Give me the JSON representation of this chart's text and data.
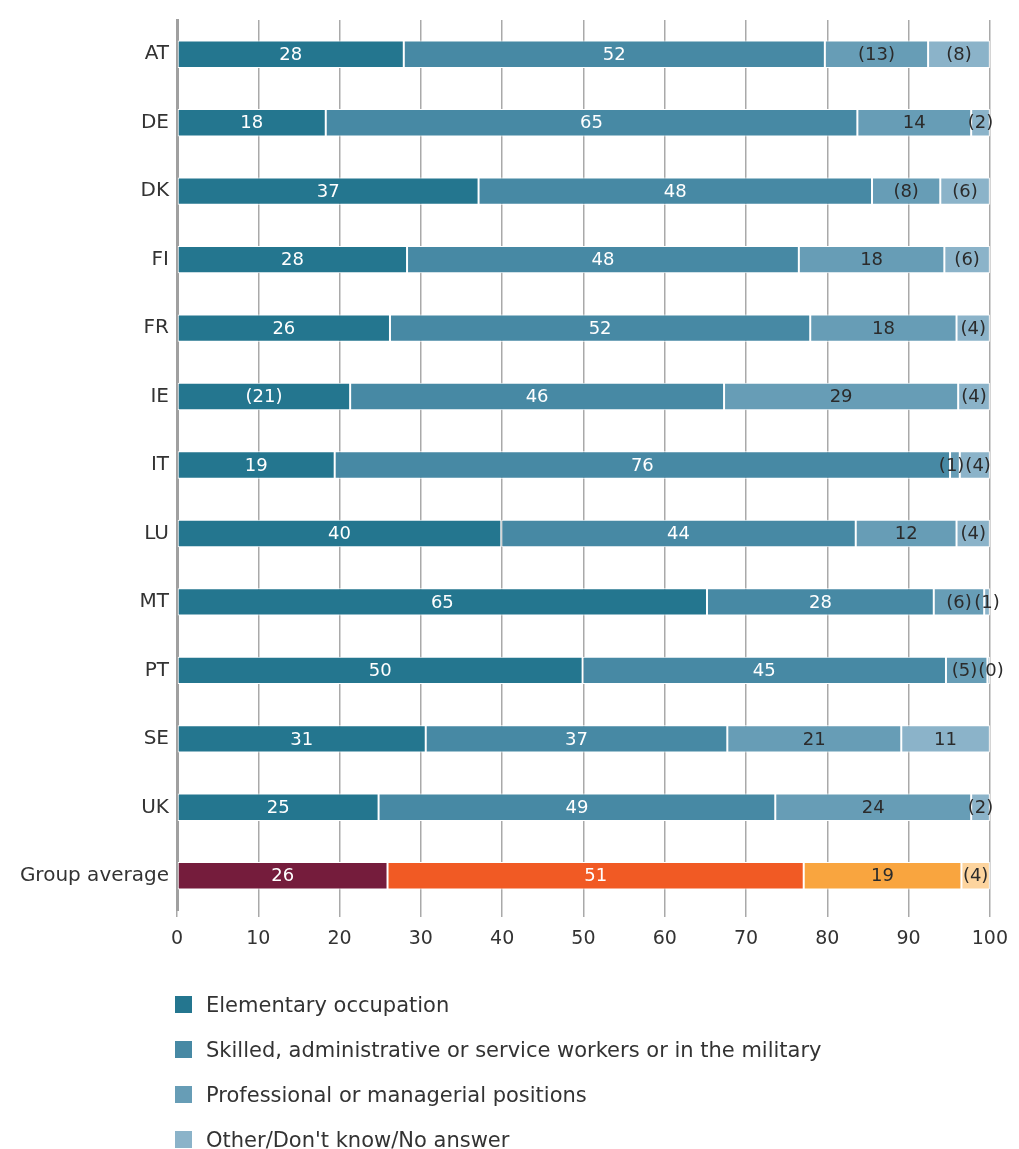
{
  "chart_data": {
    "type": "bar",
    "orientation": "horizontal",
    "stacked": true,
    "categories": [
      "AT",
      "DE",
      "DK",
      "FI",
      "FR",
      "IE",
      "IT",
      "LU",
      "MT",
      "PT",
      "SE",
      "UK",
      "Group average"
    ],
    "series": [
      {
        "name": "Elementary occupation",
        "color": "#24768f",
        "colors": [
          "#24768f",
          "#24768f",
          "#24768f",
          "#24768f",
          "#24768f",
          "#24768f",
          "#24768f",
          "#24768f",
          "#24768f",
          "#24768f",
          "#24768f",
          "#24768f",
          "#751c3c"
        ],
        "values": [
          27.9,
          18.3,
          37.1,
          28.3,
          26.2,
          21.3,
          19.4,
          39.9,
          65.2,
          49.9,
          30.6,
          24.8,
          25.9
        ],
        "value_labels": [
          "28",
          "18",
          "37",
          "28",
          "26",
          "(21)",
          "19",
          "40",
          "65",
          "50",
          "31",
          "25",
          "26"
        ]
      },
      {
        "name": "Skilled, administrative or service workers or in the military",
        "color": "#4789a4",
        "colors": [
          "#4789a4",
          "#4789a4",
          "#4789a4",
          "#4789a4",
          "#4789a4",
          "#4789a4",
          "#4789a4",
          "#4789a4",
          "#4789a4",
          "#4789a4",
          "#4789a4",
          "#4789a4",
          "#f15a24"
        ],
        "values": [
          51.8,
          65.4,
          48.4,
          48.2,
          51.7,
          46.0,
          75.7,
          43.6,
          27.9,
          44.7,
          37.1,
          48.8,
          51.2
        ],
        "value_labels": [
          "52",
          "65",
          "48",
          "48",
          "52",
          "46",
          "76",
          "44",
          "28",
          "45",
          "37",
          "49",
          "51"
        ]
      },
      {
        "name": "Professional or managerial positions",
        "color": "#679db6",
        "colors": [
          "#679db6",
          "#679db6",
          "#679db6",
          "#679db6",
          "#679db6",
          "#679db6",
          "#679db6",
          "#679db6",
          "#679db6",
          "#679db6",
          "#679db6",
          "#679db6",
          "#f9a53f"
        ],
        "values": [
          12.7,
          14.0,
          8.4,
          17.9,
          18.0,
          28.8,
          1.2,
          12.4,
          6.2,
          5.1,
          21.4,
          24.1,
          19.4
        ],
        "value_labels": [
          "(13)",
          "14",
          "(8)",
          "18",
          "18",
          "29",
          "(1)",
          "12",
          "(6)",
          "(5)",
          "21",
          "24",
          "19"
        ]
      },
      {
        "name": "Other/Don't know/No answer",
        "color": "#8bb3c9",
        "colors": [
          "#8bb3c9",
          "#8bb3c9",
          "#8bb3c9",
          "#8bb3c9",
          "#8bb3c9",
          "#8bb3c9",
          "#8bb3c9",
          "#8bb3c9",
          "#8bb3c9",
          "#8bb3c9",
          "#8bb3c9",
          "#8bb3c9",
          "#fdd49e"
        ],
        "values": [
          7.6,
          2.3,
          6.1,
          5.6,
          4.1,
          3.9,
          3.7,
          4.1,
          0.7,
          0.3,
          10.9,
          2.3,
          3.5
        ],
        "value_labels": [
          "(8)",
          "(2)",
          "(6)",
          "(6)",
          "(4)",
          "(4)",
          "(4)",
          "(4)",
          "(1)",
          "(0)",
          "11",
          "(2)",
          "(4)"
        ]
      }
    ],
    "xlim": [
      0,
      100
    ],
    "xticks": [
      0,
      10,
      20,
      30,
      40,
      50,
      60,
      70,
      80,
      90,
      100
    ],
    "grid": "x",
    "legend": "bottom"
  }
}
